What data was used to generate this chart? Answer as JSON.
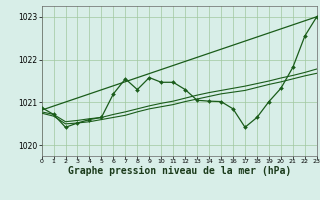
{
  "background_color": "#d8eee8",
  "grid_color": "#a0c8a0",
  "line_color": "#1a5c1a",
  "xlabel": "Graphe pression niveau de la mer (hPa)",
  "xlabel_fontsize": 7.0,
  "yticks": [
    1020,
    1021,
    1022,
    1023
  ],
  "xlim": [
    0,
    23
  ],
  "ylim": [
    1019.75,
    1023.25
  ],
  "xticks": [
    0,
    1,
    2,
    3,
    4,
    5,
    6,
    7,
    8,
    9,
    10,
    11,
    12,
    13,
    14,
    15,
    16,
    17,
    18,
    19,
    20,
    21,
    22,
    23
  ],
  "line_straight": {
    "x": [
      0,
      23
    ],
    "y": [
      1020.82,
      1023.0
    ]
  },
  "line_mid1": {
    "x": [
      0,
      1,
      2,
      3,
      4,
      5,
      6,
      7,
      8,
      9,
      10,
      11,
      12,
      13,
      14,
      15,
      16,
      17,
      18,
      19,
      20,
      21,
      22,
      23
    ],
    "y": [
      1020.78,
      1020.72,
      1020.55,
      1020.58,
      1020.62,
      1020.65,
      1020.72,
      1020.78,
      1020.85,
      1020.92,
      1020.98,
      1021.03,
      1021.1,
      1021.17,
      1021.23,
      1021.28,
      1021.33,
      1021.38,
      1021.44,
      1021.5,
      1021.57,
      1021.63,
      1021.7,
      1021.78
    ]
  },
  "line_mid2": {
    "x": [
      0,
      1,
      2,
      3,
      4,
      5,
      6,
      7,
      8,
      9,
      10,
      11,
      12,
      13,
      14,
      15,
      16,
      17,
      18,
      19,
      20,
      21,
      22,
      23
    ],
    "y": [
      1020.75,
      1020.68,
      1020.5,
      1020.52,
      1020.55,
      1020.6,
      1020.65,
      1020.7,
      1020.78,
      1020.85,
      1020.9,
      1020.95,
      1021.02,
      1021.08,
      1021.14,
      1021.2,
      1021.24,
      1021.28,
      1021.35,
      1021.42,
      1021.48,
      1021.55,
      1021.62,
      1021.68
    ]
  },
  "line_wiggly": {
    "x": [
      0,
      1,
      2,
      3,
      4,
      5,
      6,
      7,
      8,
      9,
      10,
      11,
      12,
      13,
      14,
      15,
      16,
      17,
      18,
      19,
      20,
      21,
      22,
      23
    ],
    "y": [
      1020.88,
      1020.72,
      1020.42,
      1020.52,
      1020.6,
      1020.65,
      1021.2,
      1021.55,
      1021.3,
      1021.58,
      1021.47,
      1021.47,
      1021.3,
      1021.05,
      1021.03,
      1021.02,
      1020.85,
      1020.42,
      1020.65,
      1021.02,
      1021.33,
      1021.82,
      1022.55,
      1023.0
    ]
  }
}
